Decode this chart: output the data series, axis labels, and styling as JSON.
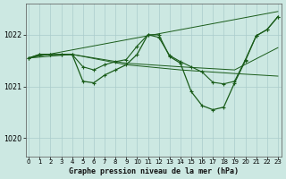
{
  "background_color": "#cce8e2",
  "grid_color": "#aacccc",
  "line_color": "#1a5c1a",
  "title": "Graphe pression niveau de la mer (hPa)",
  "xlim": [
    -0.3,
    23.3
  ],
  "ylim": [
    1019.65,
    1022.6
  ],
  "yticks": [
    1020,
    1021,
    1022
  ],
  "xticks": [
    0,
    1,
    2,
    3,
    4,
    5,
    6,
    7,
    8,
    9,
    10,
    11,
    12,
    13,
    14,
    15,
    16,
    17,
    18,
    19,
    20,
    21,
    22,
    23
  ],
  "line_top_diagonal": {
    "x": [
      0,
      23
    ],
    "y": [
      1021.55,
      1022.45
    ]
  },
  "line_middle_flat": {
    "x": [
      0,
      1,
      2,
      3,
      4,
      9,
      14,
      19,
      23
    ],
    "y": [
      1021.55,
      1021.6,
      1021.62,
      1021.62,
      1021.62,
      1021.45,
      1021.38,
      1021.32,
      1021.75
    ]
  },
  "line_lower_flat": {
    "x": [
      0,
      4,
      9,
      14,
      19,
      23
    ],
    "y": [
      1021.55,
      1021.62,
      1021.42,
      1021.32,
      1021.25,
      1021.2
    ]
  },
  "line_main_with_markers": {
    "x": [
      0,
      1,
      2,
      3,
      4,
      5,
      6,
      7,
      8,
      9,
      10,
      11,
      12,
      13,
      14,
      15,
      16,
      17,
      18,
      19,
      20,
      21,
      22,
      23
    ],
    "y": [
      1021.55,
      1021.62,
      1021.62,
      1021.62,
      1021.62,
      1021.1,
      1021.07,
      1021.22,
      1021.32,
      1021.42,
      1021.62,
      1022.0,
      1022.0,
      1021.58,
      1021.45,
      1020.9,
      1020.63,
      1020.55,
      1020.6,
      1021.07,
      1021.5,
      1021.98,
      1022.1,
      1022.35
    ]
  },
  "line_second_with_markers": {
    "x": [
      0,
      1,
      2,
      3,
      4,
      5,
      6,
      7,
      8,
      9,
      10,
      11,
      12,
      13,
      14,
      15,
      16,
      17,
      18,
      19,
      20,
      21,
      22,
      23
    ],
    "y": [
      1021.55,
      1021.62,
      1021.62,
      1021.62,
      1021.62,
      1021.38,
      1021.32,
      1021.42,
      1021.48,
      1021.52,
      1021.78,
      1022.0,
      1021.95,
      1021.6,
      1021.48,
      1021.38,
      1021.28,
      1021.08,
      1021.05,
      1021.1,
      1021.52,
      1021.98,
      1022.1,
      1022.35
    ]
  }
}
